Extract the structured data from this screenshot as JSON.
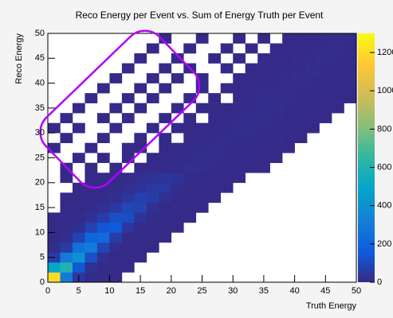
{
  "chart_data": {
    "type": "heatmap",
    "title": "Reco Energy per Event  vs. Sum of Energy Truth per Event",
    "x_label": "Truth Energy",
    "y_label": "Reco Energy",
    "xlim": [
      0,
      50
    ],
    "ylim": [
      0,
      50
    ],
    "zlim": [
      0,
      1300
    ],
    "xticks": [
      0,
      5,
      10,
      15,
      20,
      25,
      30,
      35,
      40,
      45,
      50
    ],
    "yticks": [
      0,
      5,
      10,
      15,
      20,
      25,
      30,
      35,
      40,
      45,
      50
    ],
    "zticks": [
      0,
      200,
      400,
      600,
      800,
      1000,
      1200
    ],
    "palette": [
      "#352a87",
      "#0f5cdd",
      "#1481d6",
      "#06a4ca",
      "#2eb7a4",
      "#87bf77",
      "#d1bb59",
      "#fec832",
      "#f9fb0e"
    ],
    "z": [
      [
        1200,
        300,
        40,
        5,
        2,
        1,
        0,
        0,
        0,
        0,
        0,
        0,
        0,
        0,
        0,
        0,
        0,
        0,
        0,
        0,
        0,
        0,
        0,
        0,
        0
      ],
      [
        500,
        600,
        150,
        20,
        4,
        1,
        1,
        0,
        0,
        0,
        0,
        0,
        0,
        0,
        0,
        0,
        0,
        0,
        0,
        0,
        0,
        0,
        0,
        0,
        0
      ],
      [
        60,
        300,
        400,
        120,
        15,
        3,
        1,
        1,
        0,
        0,
        0,
        0,
        0,
        0,
        0,
        0,
        0,
        0,
        0,
        0,
        0,
        0,
        0,
        0,
        0
      ],
      [
        10,
        60,
        250,
        300,
        90,
        10,
        2,
        1,
        1,
        0,
        0,
        0,
        0,
        0,
        0,
        0,
        0,
        0,
        0,
        0,
        0,
        0,
        0,
        0,
        0
      ],
      [
        3,
        15,
        80,
        200,
        220,
        60,
        8,
        3,
        1,
        1,
        0,
        0,
        0,
        0,
        0,
        0,
        0,
        0,
        0,
        0,
        0,
        0,
        0,
        0,
        0
      ],
      [
        1,
        4,
        20,
        80,
        150,
        160,
        40,
        6,
        2,
        1,
        1,
        0,
        0,
        0,
        0,
        0,
        0,
        0,
        0,
        0,
        0,
        0,
        0,
        0,
        0
      ],
      [
        1,
        2,
        6,
        25,
        60,
        120,
        110,
        30,
        5,
        2,
        1,
        1,
        0,
        0,
        0,
        0,
        0,
        0,
        0,
        0,
        0,
        0,
        0,
        0,
        0
      ],
      [
        0,
        1,
        3,
        8,
        20,
        50,
        90,
        80,
        20,
        4,
        2,
        1,
        1,
        0,
        0,
        0,
        0,
        0,
        0,
        0,
        0,
        0,
        0,
        0,
        0
      ],
      [
        0,
        1,
        1,
        3,
        6,
        15,
        40,
        70,
        60,
        15,
        3,
        2,
        1,
        1,
        0,
        0,
        0,
        0,
        0,
        0,
        0,
        0,
        0,
        0,
        0
      ],
      [
        0,
        0,
        1,
        1,
        3,
        6,
        15,
        30,
        50,
        45,
        10,
        3,
        2,
        1,
        1,
        0,
        0,
        0,
        0,
        0,
        0,
        0,
        0,
        0,
        0
      ],
      [
        0,
        1,
        0,
        1,
        2,
        3,
        6,
        15,
        25,
        35,
        30,
        8,
        3,
        2,
        1,
        1,
        0,
        0,
        0,
        0,
        0,
        0,
        0,
        0,
        0
      ],
      [
        0,
        1,
        0,
        1,
        0,
        1,
        0,
        1,
        1,
        2,
        8,
        15,
        12,
        6,
        3,
        2,
        1,
        1,
        0,
        0,
        0,
        0,
        0,
        0,
        0
      ],
      [
        0,
        0,
        1,
        0,
        1,
        0,
        1,
        0,
        1,
        1,
        2,
        8,
        14,
        12,
        6,
        3,
        2,
        1,
        1,
        0,
        0,
        0,
        0,
        0,
        0
      ],
      [
        1,
        0,
        0,
        1,
        0,
        0,
        1,
        1,
        0,
        1,
        1,
        2,
        8,
        14,
        11,
        6,
        3,
        2,
        1,
        1,
        0,
        0,
        0,
        0,
        0
      ],
      [
        0,
        1,
        0,
        0,
        1,
        0,
        0,
        1,
        0,
        1,
        0,
        1,
        2,
        8,
        13,
        11,
        5,
        3,
        2,
        1,
        1,
        0,
        0,
        0,
        0
      ],
      [
        1,
        0,
        1,
        0,
        0,
        1,
        0,
        0,
        1,
        0,
        1,
        1,
        1,
        2,
        7,
        13,
        10,
        5,
        3,
        2,
        1,
        1,
        0,
        0,
        0
      ],
      [
        0,
        1,
        0,
        0,
        1,
        0,
        1,
        0,
        0,
        1,
        0,
        1,
        0,
        1,
        2,
        7,
        12,
        10,
        5,
        3,
        2,
        1,
        1,
        0,
        0
      ],
      [
        0,
        0,
        1,
        0,
        0,
        1,
        0,
        1,
        0,
        0,
        1,
        0,
        1,
        1,
        1,
        2,
        7,
        12,
        9,
        5,
        3,
        2,
        1,
        1,
        0
      ],
      [
        0,
        0,
        0,
        1,
        0,
        0,
        1,
        0,
        1,
        0,
        0,
        1,
        0,
        1,
        0,
        1,
        2,
        7,
        11,
        9,
        4,
        3,
        2,
        1,
        1
      ],
      [
        0,
        0,
        0,
        0,
        1,
        0,
        0,
        1,
        0,
        1,
        0,
        0,
        1,
        0,
        1,
        1,
        1,
        2,
        6,
        11,
        8,
        4,
        3,
        2,
        1
      ],
      [
        0,
        0,
        0,
        0,
        0,
        1,
        0,
        0,
        1,
        0,
        1,
        0,
        1,
        0,
        0,
        1,
        1,
        1,
        2,
        6,
        10,
        8,
        4,
        3,
        2
      ],
      [
        0,
        0,
        0,
        0,
        0,
        0,
        1,
        0,
        0,
        1,
        0,
        1,
        0,
        0,
        1,
        0,
        1,
        1,
        1,
        2,
        6,
        10,
        7,
        4,
        3
      ],
      [
        0,
        0,
        0,
        0,
        0,
        0,
        0,
        1,
        0,
        0,
        1,
        0,
        0,
        1,
        0,
        1,
        0,
        1,
        1,
        1,
        2,
        6,
        9,
        7,
        4
      ],
      [
        0,
        0,
        0,
        0,
        0,
        0,
        0,
        0,
        1,
        0,
        0,
        1,
        0,
        0,
        1,
        0,
        1,
        0,
        1,
        1,
        1,
        2,
        6,
        9,
        7
      ],
      [
        0,
        0,
        0,
        0,
        0,
        0,
        0,
        0,
        0,
        1,
        0,
        0,
        1,
        0,
        0,
        1,
        0,
        1,
        0,
        1,
        1,
        1,
        2,
        6,
        8
      ]
    ]
  }
}
